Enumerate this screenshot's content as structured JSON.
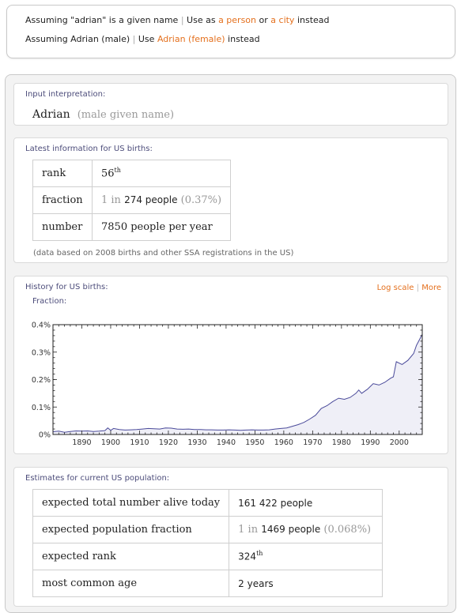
{
  "assumptions": {
    "line1": {
      "prefix": "Assuming \"adrian\" is a given name",
      "sep": "|",
      "use_as": "Use as",
      "opt1": "a person",
      "or": "or",
      "opt2": "a city",
      "suffix": "instead"
    },
    "line2": {
      "prefix": "Assuming Adrian (male)",
      "sep": "|",
      "use": "Use",
      "opt": "Adrian (female)",
      "suffix": "instead"
    }
  },
  "input_pod": {
    "title": "Input interpretation:",
    "name": "Adrian",
    "qualifier": "(male given name)"
  },
  "births_pod": {
    "title": "Latest information for US births:",
    "rank_label": "rank",
    "rank_value": "56",
    "rank_suffix": "th",
    "fraction_label": "fraction",
    "fraction_prefix": "1 in",
    "fraction_value": "274 people",
    "fraction_pct": "(0.37%)",
    "number_label": "number",
    "number_value": "7850 people per year",
    "footnote": "(data based on 2008 births and other SSA registrations in the US)"
  },
  "history_pod": {
    "title": "History for US births:",
    "link1": "Log scale",
    "sep": "|",
    "link2": "More",
    "chart_label": "Fraction:"
  },
  "chart_data": {
    "type": "area",
    "ylabel": "Fraction:",
    "xlim": [
      1880,
      2008
    ],
    "ylim": [
      0,
      0.4
    ],
    "x_ticks": [
      1890,
      1900,
      1910,
      1920,
      1930,
      1940,
      1950,
      1960,
      1970,
      1980,
      1990,
      2000
    ],
    "y_ticks": [
      "0%",
      "0.1%",
      "0.2%",
      "0.3%",
      "0.4%"
    ],
    "y_tick_values": [
      0,
      0.1,
      0.2,
      0.3,
      0.4
    ],
    "line_color": "#4a4a9a",
    "fill_color": "#efeff7",
    "x": [
      1880,
      1882,
      1884,
      1886,
      1888,
      1890,
      1892,
      1894,
      1896,
      1898,
      1899,
      1900,
      1901,
      1903,
      1905,
      1907,
      1909,
      1911,
      1913,
      1915,
      1917,
      1919,
      1921,
      1923,
      1925,
      1927,
      1929,
      1931,
      1933,
      1935,
      1937,
      1939,
      1941,
      1943,
      1945,
      1947,
      1949,
      1951,
      1953,
      1955,
      1957,
      1959,
      1961,
      1963,
      1965,
      1967,
      1969,
      1971,
      1973,
      1975,
      1977,
      1979,
      1981,
      1983,
      1985,
      1986,
      1987,
      1989,
      1991,
      1993,
      1995,
      1997,
      1998,
      1999,
      2001,
      2003,
      2005,
      2006,
      2007,
      2008
    ],
    "y": [
      0.01,
      0.012,
      0.008,
      0.011,
      0.013,
      0.012,
      0.013,
      0.011,
      0.012,
      0.014,
      0.024,
      0.015,
      0.022,
      0.018,
      0.016,
      0.017,
      0.018,
      0.02,
      0.022,
      0.021,
      0.02,
      0.024,
      0.023,
      0.02,
      0.019,
      0.02,
      0.018,
      0.018,
      0.017,
      0.017,
      0.016,
      0.016,
      0.017,
      0.016,
      0.015,
      0.016,
      0.017,
      0.016,
      0.016,
      0.017,
      0.02,
      0.022,
      0.024,
      0.03,
      0.036,
      0.044,
      0.056,
      0.07,
      0.095,
      0.105,
      0.12,
      0.132,
      0.128,
      0.135,
      0.15,
      0.162,
      0.15,
      0.165,
      0.185,
      0.18,
      0.19,
      0.205,
      0.21,
      0.265,
      0.255,
      0.27,
      0.295,
      0.325,
      0.345,
      0.365
    ]
  },
  "estimates_pod": {
    "title": "Estimates for current US population:",
    "rows": [
      {
        "label": "expected total number alive today",
        "value": "161 422 people"
      },
      {
        "label": "expected population fraction",
        "prefix": "1 in",
        "value": "1469 people",
        "pct": "(0.068%)"
      },
      {
        "label": "expected rank",
        "value": "324",
        "suffix": "th"
      },
      {
        "label": "most common age",
        "value": "2 years"
      }
    ]
  }
}
